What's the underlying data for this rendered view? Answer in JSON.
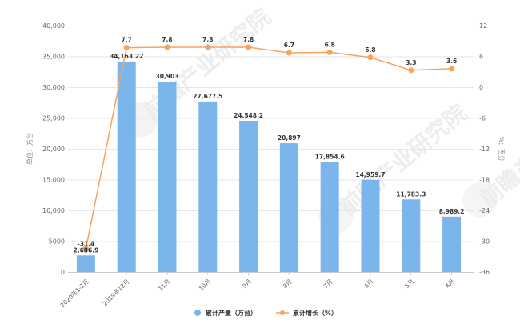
{
  "chart_data": {
    "type": "bar",
    "title": "",
    "categories": [
      "2020年1-2月",
      "2019年12月",
      "11月",
      "10月",
      "9月",
      "8月",
      "7月",
      "6月",
      "5月",
      "4月"
    ],
    "series": [
      {
        "name": "累计产量（万台）",
        "type": "bar",
        "axis": "left",
        "color": "#7cb5ec",
        "values": [
          2686.9,
          34163.22,
          30903,
          27677.5,
          24548.2,
          20897,
          17854.6,
          14959.7,
          11783.3,
          8989.2
        ],
        "labels": [
          "2,686.9",
          "34,163.22",
          "30,903",
          "27,677.5",
          "24,548.2",
          "20,897",
          "17,854.6",
          "14,959.7",
          "11,783.3",
          "8,989.2"
        ]
      },
      {
        "name": "累计增长（%）",
        "type": "line",
        "axis": "right",
        "color": "#f7a35c",
        "values": [
          -31.4,
          7.7,
          7.8,
          7.8,
          7.8,
          6.7,
          6.8,
          5.8,
          3.3,
          3.6
        ],
        "labels": [
          "-31.4",
          "7.7",
          "7.8",
          "7.8",
          "7.8",
          "6.7",
          "6.8",
          "5.8",
          "3.3",
          "3.6"
        ]
      }
    ],
    "ylabel": "单位：万台",
    "y2label": "%：百分",
    "ylim": [
      0,
      40000
    ],
    "y2lim": [
      -36,
      12
    ],
    "y_ticks": [
      "0",
      "5000",
      "10,000",
      "15,000",
      "20,000",
      "25,000",
      "30,000",
      "35,000",
      "40,000"
    ],
    "y2_ticks": [
      "-36",
      "-30",
      "-24",
      "-18",
      "-12",
      "-6",
      "0",
      "6",
      "12"
    ],
    "grid": true,
    "legend_position": "bottom"
  },
  "legend": {
    "items": [
      {
        "label": "累计产量（万台）",
        "color": "#7cb5ec",
        "marker": "circle"
      },
      {
        "label": "累计增长（%）",
        "color": "#f7a35c",
        "marker": "line-dot"
      }
    ]
  },
  "watermark": {
    "text": "前瞻产业研究院"
  }
}
